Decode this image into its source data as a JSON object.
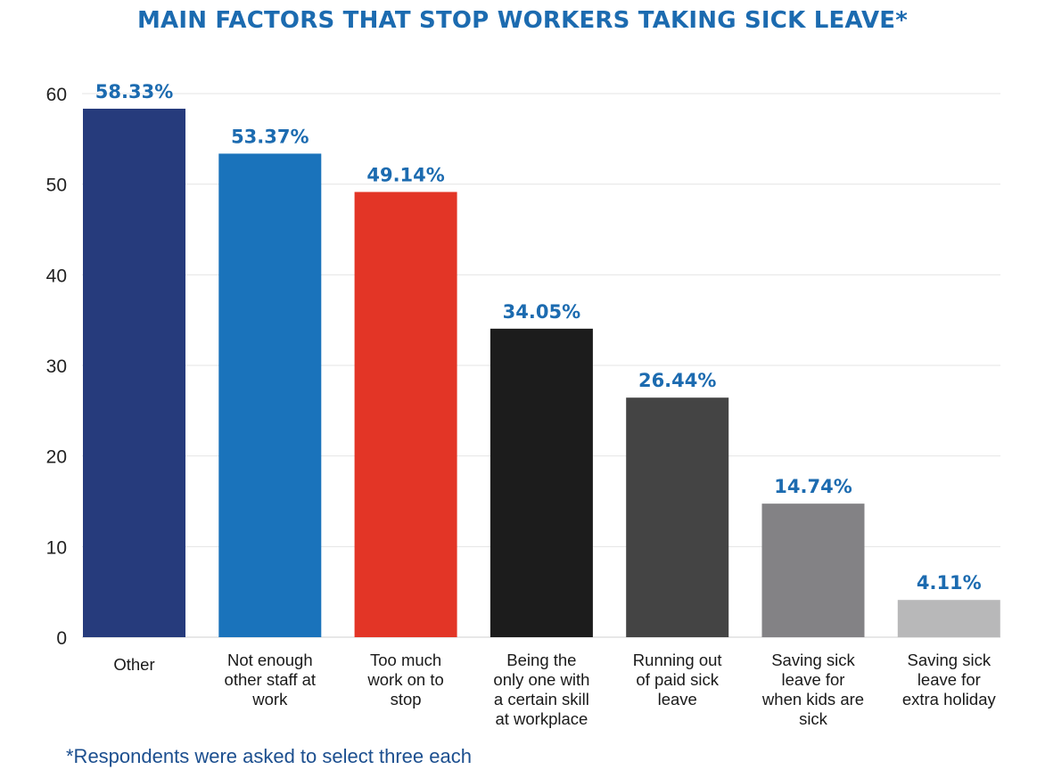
{
  "chart_data": {
    "type": "bar",
    "title": "MAIN FACTORS THAT STOP WORKERS TAKING SICK LEAVE*",
    "categories": [
      [
        "Other"
      ],
      [
        "Not enough",
        "other staff at",
        "work"
      ],
      [
        "Too much",
        "work on to",
        "stop"
      ],
      [
        "Being the",
        "only one with",
        "a certain skill",
        "at workplace"
      ],
      [
        "Running out",
        "of paid sick",
        "leave"
      ],
      [
        "Saving sick",
        "leave for",
        "when kids are",
        "sick"
      ],
      [
        "Saving sick",
        "leave for",
        "extra holiday"
      ]
    ],
    "values": [
      58.33,
      53.37,
      49.14,
      34.05,
      26.44,
      14.74,
      4.11
    ],
    "data_labels": [
      "58.33%",
      "53.37%",
      "49.14%",
      "34.05%",
      "26.44%",
      "14.74%",
      "4.11%"
    ],
    "bar_colors": [
      "#263b7c",
      "#1a73bb",
      "#e33526",
      "#1c1c1c",
      "#444444",
      "#838285",
      "#b8b8b9"
    ],
    "label_color": "#1c6bb0",
    "ylim": [
      0,
      60
    ],
    "yticks": [
      0,
      10,
      20,
      30,
      40,
      50,
      60
    ],
    "xlabel": "",
    "ylabel": "",
    "grid": true,
    "legend": "none"
  },
  "footnote": "*Respondents were asked to select three each"
}
